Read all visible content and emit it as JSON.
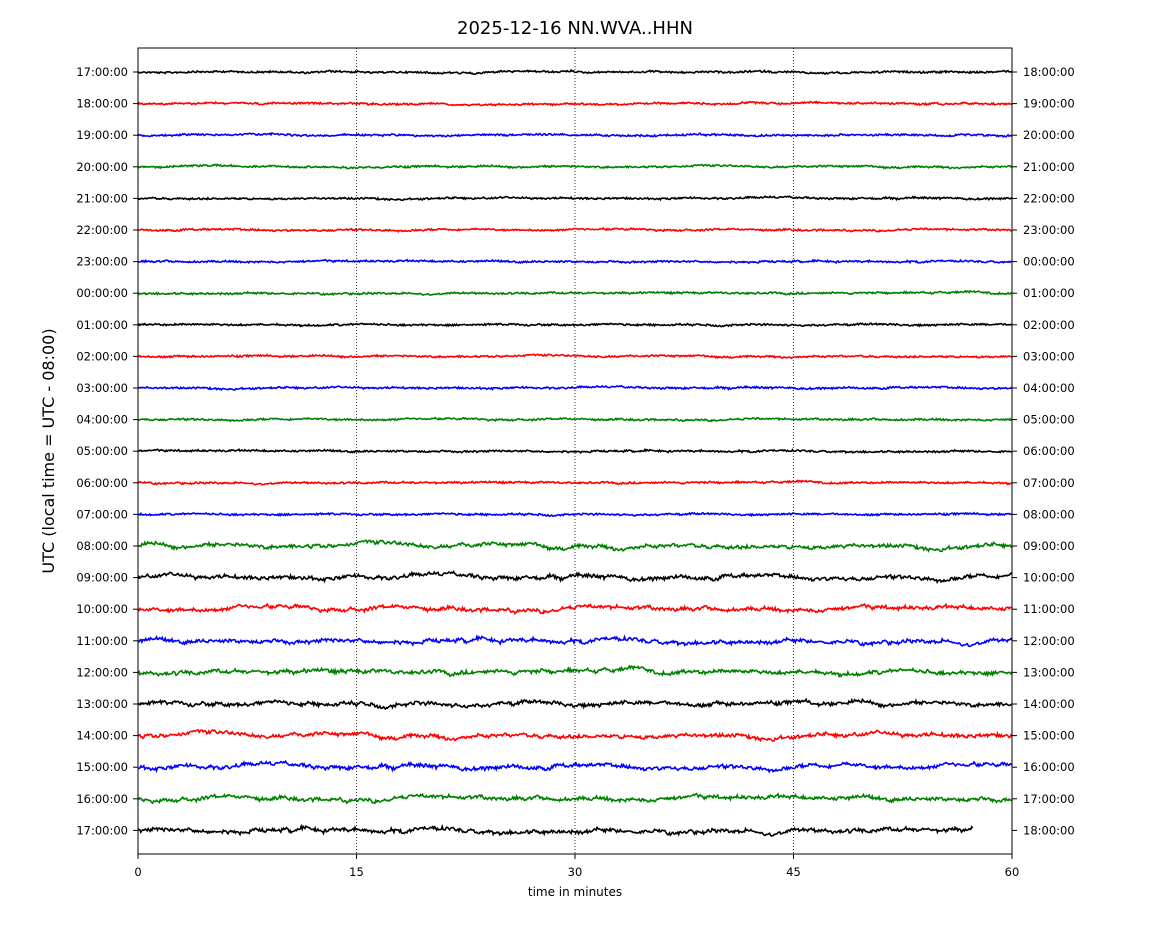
{
  "chart_data": {
    "type": "line",
    "title": "2025-12-16 NN.WVA..HHN",
    "xlabel": "time in minutes",
    "ylabel": "UTC (local time = UTC - 08:00)",
    "xlim": [
      0,
      60
    ],
    "x_ticks": [
      "0",
      "15",
      "30",
      "45",
      "60"
    ],
    "x_tick_values": [
      0,
      15,
      30,
      45,
      60
    ],
    "vertical_grid_at": [
      15,
      30,
      45
    ],
    "grid": "vertical dotted at 15, 30, 45",
    "legend": "none",
    "colors": [
      "#000000",
      "#ff0000",
      "#0000ff",
      "#008000"
    ],
    "last_trace_end_minute": 57.3,
    "rows": [
      {
        "left": "17:00:00",
        "right": "18:00:00"
      },
      {
        "left": "18:00:00",
        "right": "19:00:00"
      },
      {
        "left": "19:00:00",
        "right": "20:00:00"
      },
      {
        "left": "20:00:00",
        "right": "21:00:00"
      },
      {
        "left": "21:00:00",
        "right": "22:00:00"
      },
      {
        "left": "22:00:00",
        "right": "23:00:00"
      },
      {
        "left": "23:00:00",
        "right": "00:00:00"
      },
      {
        "left": "00:00:00",
        "right": "01:00:00"
      },
      {
        "left": "01:00:00",
        "right": "02:00:00"
      },
      {
        "left": "02:00:00",
        "right": "03:00:00"
      },
      {
        "left": "03:00:00",
        "right": "04:00:00"
      },
      {
        "left": "04:00:00",
        "right": "05:00:00"
      },
      {
        "left": "05:00:00",
        "right": "06:00:00"
      },
      {
        "left": "06:00:00",
        "right": "07:00:00"
      },
      {
        "left": "07:00:00",
        "right": "08:00:00"
      },
      {
        "left": "08:00:00",
        "right": "09:00:00"
      },
      {
        "left": "09:00:00",
        "right": "10:00:00"
      },
      {
        "left": "10:00:00",
        "right": "11:00:00"
      },
      {
        "left": "11:00:00",
        "right": "12:00:00"
      },
      {
        "left": "12:00:00",
        "right": "13:00:00"
      },
      {
        "left": "13:00:00",
        "right": "14:00:00"
      },
      {
        "left": "14:00:00",
        "right": "15:00:00"
      },
      {
        "left": "15:00:00",
        "right": "16:00:00"
      },
      {
        "left": "16:00:00",
        "right": "17:00:00"
      },
      {
        "left": "17:00:00",
        "right": "18:00:00"
      }
    ]
  }
}
